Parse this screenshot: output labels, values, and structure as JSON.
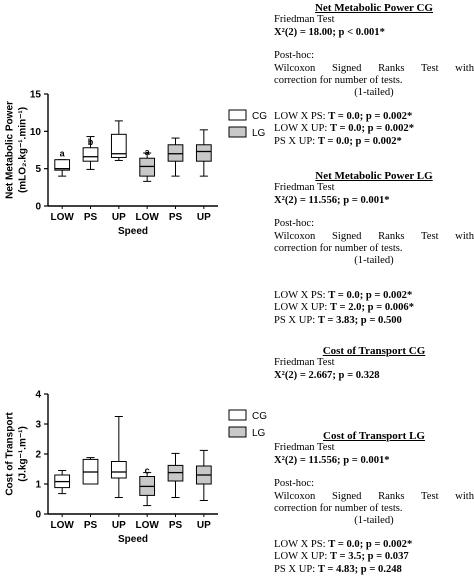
{
  "chart_data": [
    {
      "type": "box",
      "ylabel_line1": "Net Metabolic Power",
      "ylabel_line2": "(mLO₂.kg⁻¹.min⁻¹)",
      "xlabel": "Speed",
      "ylim": [
        0,
        15
      ],
      "y_ticks": [
        "0",
        "5",
        "10",
        "15"
      ],
      "categories": [
        "LOW",
        "PS",
        "UP",
        "LOW",
        "PS",
        "UP"
      ],
      "legend": [
        {
          "label": "CG",
          "color": "#ffffff"
        },
        {
          "label": "LG",
          "color": "#c8c8c8"
        }
      ],
      "boxes": [
        {
          "group": "CG",
          "min": 4.0,
          "q1": 4.8,
          "median": 5.0,
          "q3": 6.2,
          "max": 6.2,
          "annotation": "a"
        },
        {
          "group": "CG",
          "min": 4.9,
          "q1": 6.0,
          "median": 6.6,
          "q3": 7.8,
          "max": 9.3,
          "annotation": "b"
        },
        {
          "group": "CG",
          "min": 6.1,
          "q1": 6.5,
          "median": 7.0,
          "q3": 9.6,
          "max": 11.4,
          "annotation": ""
        },
        {
          "group": "LG",
          "min": 3.3,
          "q1": 4.0,
          "median": 5.3,
          "q3": 6.4,
          "max": 7.1,
          "annotation": "a"
        },
        {
          "group": "LG",
          "min": 4.0,
          "q1": 6.0,
          "median": 7.0,
          "q3": 8.2,
          "max": 9.1,
          "annotation": ""
        },
        {
          "group": "LG",
          "min": 4.0,
          "q1": 6.0,
          "median": 7.3,
          "q3": 8.2,
          "max": 10.2,
          "annotation": ""
        }
      ]
    },
    {
      "type": "box",
      "ylabel_line1": "Cost of Transport",
      "ylabel_line2": "(J.kg⁻¹.m⁻¹)",
      "xlabel": "Speed",
      "ylim": [
        0,
        4
      ],
      "y_ticks": [
        "0",
        "1",
        "2",
        "3",
        "4"
      ],
      "categories": [
        "LOW",
        "PS",
        "UP",
        "LOW",
        "PS",
        "UP"
      ],
      "legend": [
        {
          "label": "CG",
          "color": "#ffffff"
        },
        {
          "label": "LG",
          "color": "#c8c8c8"
        }
      ],
      "boxes": [
        {
          "group": "CG",
          "min": 0.68,
          "q1": 0.88,
          "median": 1.08,
          "q3": 1.3,
          "max": 1.45,
          "annotation": ""
        },
        {
          "group": "CG",
          "min": 1.0,
          "q1": 1.0,
          "median": 1.4,
          "q3": 1.82,
          "max": 1.88,
          "annotation": ""
        },
        {
          "group": "CG",
          "min": 0.55,
          "q1": 1.2,
          "median": 1.4,
          "q3": 1.75,
          "max": 3.25,
          "annotation": ""
        },
        {
          "group": "LG",
          "min": 0.28,
          "q1": 0.62,
          "median": 0.92,
          "q3": 1.25,
          "max": 1.38,
          "annotation": "c"
        },
        {
          "group": "LG",
          "min": 0.55,
          "q1": 1.1,
          "median": 1.38,
          "q3": 1.62,
          "max": 2.02,
          "annotation": ""
        },
        {
          "group": "LG",
          "min": 0.45,
          "q1": 1.0,
          "median": 1.3,
          "q3": 1.6,
          "max": 2.12,
          "annotation": ""
        }
      ]
    }
  ],
  "stats": {
    "nmp_cg": {
      "heading": "Net Metabolic Power CG",
      "test": "Friedman Test",
      "result": "X²(2) = 18.00; p < 0.001*",
      "posthoc": "Post-hoc:",
      "wilcoxon": "Wilcoxon  Signed  Ranks  Test  with",
      "correction": "correction for number of tests.",
      "tailed": "(1-tailed)",
      "c1_label": "LOW X PS: ",
      "c1_value": "T = 0.0; p = 0.002*",
      "c2_label": "LOW X UP: ",
      "c2_value": "T = 0.0; p = 0.002*",
      "c3_label": "PS X UP: ",
      "c3_value": "T = 0.0; p = 0.002*"
    },
    "nmp_lg": {
      "heading": "Net Metabolic Power LG",
      "test": "Friedman Test",
      "result": "X²(2) = 11.556; p = 0.001*",
      "posthoc": "Post-hoc:",
      "wilcoxon": "Wilcoxon  Signed  Ranks  Test  with",
      "correction": "correction for number of tests.",
      "tailed": "(1-tailed)",
      "c1_label": "LOW X PS: ",
      "c1_value": "T = 0.0; p = 0.002*",
      "c2_label": "LOW X UP: ",
      "c2_value": "T = 2.0; p = 0.006*",
      "c3_label": "PS X UP: ",
      "c3_value": "T = 3.83; p = 0.500"
    },
    "cot_cg": {
      "heading": "Cost of Transport CG",
      "test": "Friedman Test",
      "result": "X²(2) = 2.667; p = 0.328"
    },
    "cot_lg": {
      "heading": "Cost of Transport LG",
      "test": "Friedman Test",
      "result": "X²(2) = 11.556; p = 0.001*",
      "posthoc": "Post-hoc:",
      "wilcoxon": "Wilcoxon  Signed  Ranks  Test  with",
      "correction": "correction for number of tests.",
      "tailed": "(1-tailed)",
      "c1_label": "LOW X PS: ",
      "c1_value": "T = 0.0; p = 0.002*",
      "c2_label": "LOW X UP: ",
      "c2_value": "T = 3.5; p = 0.037",
      "c3_label": "PS X UP: ",
      "c3_value": "T = 4.83; p = 0.248"
    }
  }
}
